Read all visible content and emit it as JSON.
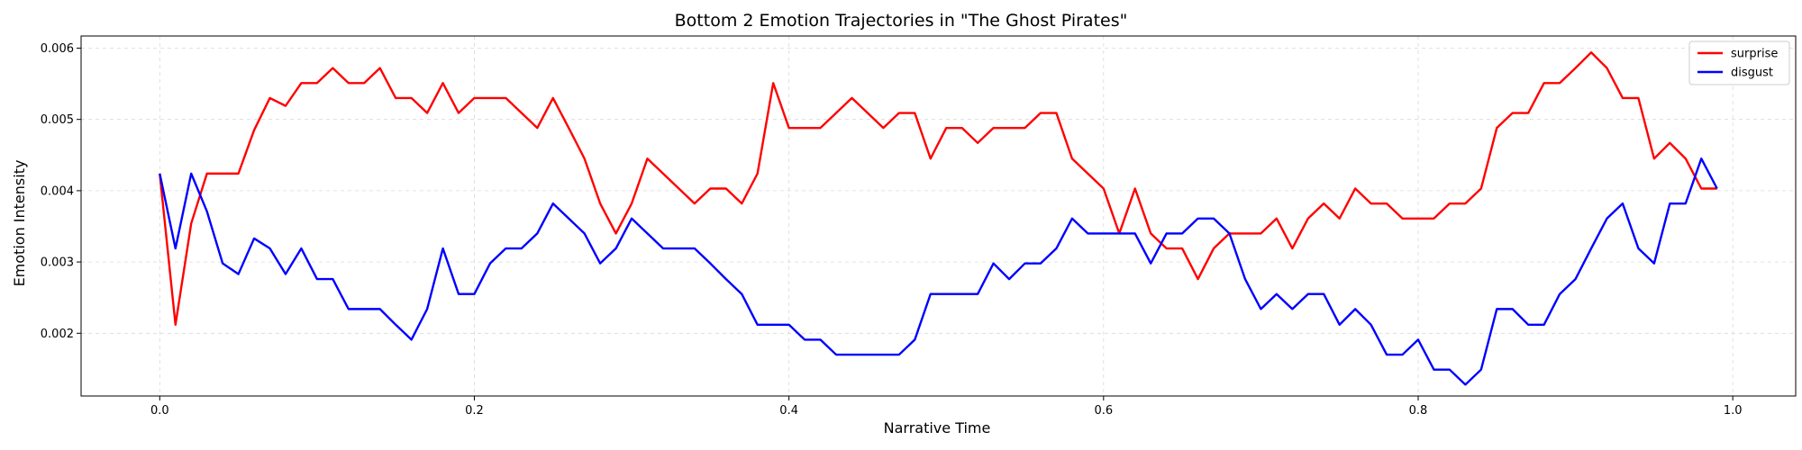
{
  "chart_data": {
    "type": "line",
    "title": "Bottom 2 Emotion Trajectories in \"The Ghost Pirates\"",
    "xlabel": "Narrative Time",
    "ylabel": "Emotion Intensity",
    "xlim": [
      -0.05,
      1.04
    ],
    "ylim": [
      0.00112,
      0.00617
    ],
    "xticks": [
      0.0,
      0.2,
      0.4,
      0.6,
      0.8,
      1.0
    ],
    "xtick_labels": [
      "0.0",
      "0.2",
      "0.4",
      "0.6",
      "0.8",
      "1.0"
    ],
    "yticks": [
      0.002,
      0.003,
      0.004,
      0.005,
      0.006
    ],
    "ytick_labels": [
      "0.002",
      "0.003",
      "0.004",
      "0.005",
      "0.006"
    ],
    "grid": true,
    "legend_position": "top-right",
    "x": [
      0.0,
      0.01,
      0.02,
      0.03,
      0.04,
      0.05,
      0.06,
      0.07,
      0.08,
      0.09,
      0.1,
      0.11,
      0.12,
      0.13,
      0.14,
      0.15,
      0.16,
      0.17,
      0.18,
      0.19,
      0.2,
      0.21,
      0.22,
      0.23,
      0.24,
      0.25,
      0.26,
      0.27,
      0.28,
      0.29,
      0.3,
      0.31,
      0.32,
      0.33,
      0.34,
      0.35,
      0.36,
      0.37,
      0.38,
      0.39,
      0.4,
      0.41,
      0.42,
      0.43,
      0.44,
      0.45,
      0.46,
      0.47,
      0.48,
      0.49,
      0.5,
      0.51,
      0.52,
      0.53,
      0.54,
      0.55,
      0.56,
      0.57,
      0.58,
      0.59,
      0.6,
      0.61,
      0.62,
      0.63,
      0.64,
      0.65,
      0.66,
      0.67,
      0.68,
      0.69,
      0.7,
      0.71,
      0.72,
      0.73,
      0.74,
      0.75,
      0.76,
      0.77,
      0.78,
      0.79,
      0.8,
      0.81,
      0.82,
      0.83,
      0.84,
      0.85,
      0.86,
      0.87,
      0.88,
      0.89,
      0.9,
      0.91,
      0.92,
      0.93,
      0.94,
      0.95,
      0.96,
      0.97,
      0.98,
      0.99
    ],
    "series": [
      {
        "name": "surprise",
        "color": "#ff0000",
        "values": [
          0.00424,
          0.00212,
          0.00354,
          0.00424,
          0.00424,
          0.00424,
          0.00485,
          0.0053,
          0.00519,
          0.00551,
          0.00551,
          0.00572,
          0.00551,
          0.00551,
          0.00572,
          0.0053,
          0.0053,
          0.00509,
          0.00551,
          0.00509,
          0.0053,
          0.0053,
          0.0053,
          0.00509,
          0.00488,
          0.0053,
          0.00488,
          0.00445,
          0.00382,
          0.0034,
          0.00382,
          0.00445,
          0.00424,
          0.00403,
          0.00382,
          0.00403,
          0.00403,
          0.00382,
          0.00424,
          0.00551,
          0.00488,
          0.00488,
          0.00488,
          0.00509,
          0.0053,
          0.00509,
          0.00488,
          0.00509,
          0.00509,
          0.00445,
          0.00488,
          0.00488,
          0.00467,
          0.00488,
          0.00488,
          0.00488,
          0.00509,
          0.00509,
          0.00445,
          0.00424,
          0.00403,
          0.0034,
          0.00403,
          0.0034,
          0.00319,
          0.00319,
          0.00276,
          0.00319,
          0.0034,
          0.0034,
          0.0034,
          0.00361,
          0.00319,
          0.00361,
          0.00382,
          0.00361,
          0.00403,
          0.00382,
          0.00382,
          0.00361,
          0.00361,
          0.00361,
          0.00382,
          0.00382,
          0.00403,
          0.00488,
          0.00509,
          0.00509,
          0.00551,
          0.00551,
          0.00572,
          0.00594,
          0.00572,
          0.0053,
          0.0053,
          0.00445,
          0.00467,
          0.00445,
          0.00403,
          0.00403
        ]
      },
      {
        "name": "disgust",
        "color": "#0000ff",
        "values": [
          0.00424,
          0.00319,
          0.00424,
          0.00371,
          0.00298,
          0.00283,
          0.00333,
          0.00319,
          0.00283,
          0.00319,
          0.00276,
          0.00276,
          0.00234,
          0.00234,
          0.00234,
          0.00212,
          0.00191,
          0.00234,
          0.00319,
          0.00255,
          0.00255,
          0.00298,
          0.00319,
          0.00319,
          0.0034,
          0.00382,
          0.00361,
          0.0034,
          0.00298,
          0.00319,
          0.00361,
          0.0034,
          0.00319,
          0.00319,
          0.00319,
          0.00298,
          0.00276,
          0.00255,
          0.00212,
          0.00212,
          0.00212,
          0.00191,
          0.00191,
          0.0017,
          0.0017,
          0.0017,
          0.0017,
          0.0017,
          0.00191,
          0.00255,
          0.00255,
          0.00255,
          0.00255,
          0.00298,
          0.00276,
          0.00298,
          0.00298,
          0.00319,
          0.00361,
          0.0034,
          0.0034,
          0.0034,
          0.0034,
          0.00298,
          0.0034,
          0.0034,
          0.00361,
          0.00361,
          0.0034,
          0.00276,
          0.00234,
          0.00255,
          0.00234,
          0.00255,
          0.00255,
          0.00212,
          0.00234,
          0.00212,
          0.0017,
          0.0017,
          0.00191,
          0.00149,
          0.00149,
          0.00128,
          0.00149,
          0.00234,
          0.00234,
          0.00212,
          0.00212,
          0.00255,
          0.00276,
          0.00319,
          0.00361,
          0.00382,
          0.00319,
          0.00298,
          0.00382,
          0.00382,
          0.00445,
          0.00403
        ]
      }
    ]
  }
}
